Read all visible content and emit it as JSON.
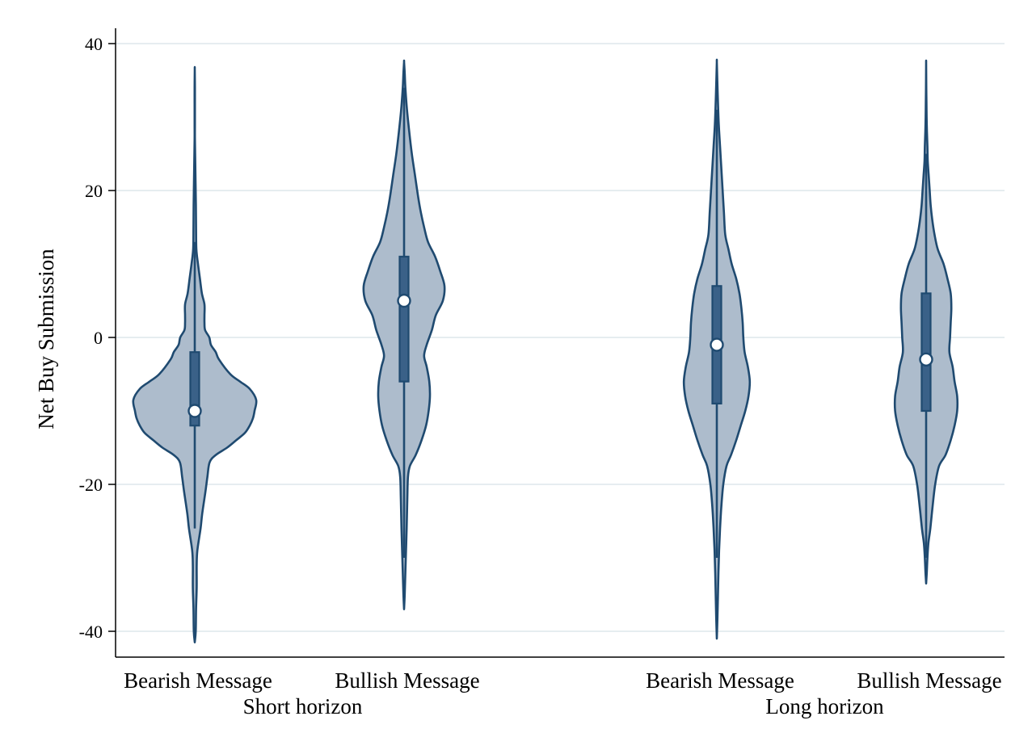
{
  "chart_data": {
    "type": "violin",
    "title": "",
    "ylabel": "Net Buy Submission",
    "ylim": [
      -44,
      42
    ],
    "yticks": [
      -40,
      -20,
      0,
      20,
      40
    ],
    "ytick_labels": [
      "-40",
      "-20",
      "0",
      "20",
      "40"
    ],
    "grid": true,
    "legend": "none",
    "colors": {
      "violin_fill": "#adbccc",
      "violin_stroke": "#1f4a70",
      "box_fill": "#3a6188",
      "grid": "#e6edf0",
      "median_marker": "#ffffff"
    },
    "groups": [
      {
        "label": "Short horizon",
        "violins": [
          {
            "label": "Bearish Message",
            "median": -10,
            "q1": -12,
            "q3": -2,
            "whisker_low": -26,
            "whisker_high": 13,
            "density": [
              [
                -41.5,
                0.0
              ],
              [
                -40,
                0.3
              ],
              [
                -37,
                0.4
              ],
              [
                -34,
                0.6
              ],
              [
                -31,
                0.6
              ],
              [
                -29,
                0.8
              ],
              [
                -26,
                1.8
              ],
              [
                -24,
                2.3
              ],
              [
                -21,
                3.3
              ],
              [
                -19,
                3.9
              ],
              [
                -17,
                4.6
              ],
              [
                -16,
                6.5
              ],
              [
                -15,
                10.0
              ],
              [
                -14,
                12.8
              ],
              [
                -13,
                15.5
              ],
              [
                -12,
                17.0
              ],
              [
                -11,
                18.0
              ],
              [
                -10,
                18.5
              ],
              [
                -8.5,
                19.0
              ],
              [
                -7,
                17.0
              ],
              [
                -6,
                14.0
              ],
              [
                -5,
                11.0
              ],
              [
                -3,
                7.5
              ],
              [
                -2,
                6.5
              ],
              [
                -1,
                5.0
              ],
              [
                0,
                4.5
              ],
              [
                1,
                3.2
              ],
              [
                2,
                3.0
              ],
              [
                3,
                3.0
              ],
              [
                4.5,
                3.0
              ],
              [
                6,
                2.2
              ],
              [
                8,
                1.6
              ],
              [
                10,
                1.0
              ],
              [
                12,
                0.5
              ],
              [
                15,
                0.4
              ],
              [
                18,
                0.35
              ],
              [
                21,
                0.25
              ],
              [
                24,
                0.15
              ],
              [
                27,
                0.05
              ],
              [
                29,
                0.05
              ],
              [
                31,
                0.05
              ],
              [
                34,
                0.05
              ],
              [
                36.5,
                0.0
              ]
            ]
          },
          {
            "label": "Bullish Message",
            "median": 5,
            "q1": -6,
            "q3": 11,
            "whisker_low": -30,
            "whisker_high": 34,
            "density": [
              [
                -37,
                0.0
              ],
              [
                -35,
                0.2
              ],
              [
                -32,
                0.4
              ],
              [
                -29,
                0.6
              ],
              [
                -26,
                0.8
              ],
              [
                -22,
                1.0
              ],
              [
                -19,
                1.2
              ],
              [
                -17.5,
                1.8
              ],
              [
                -16,
                3.6
              ],
              [
                -14,
                5.4
              ],
              [
                -12,
                6.8
              ],
              [
                -10,
                7.6
              ],
              [
                -8,
                8.0
              ],
              [
                -6,
                7.8
              ],
              [
                -4,
                7.0
              ],
              [
                -2.5,
                6.2
              ],
              [
                -1,
                7.0
              ],
              [
                1,
                8.6
              ],
              [
                3,
                9.8
              ],
              [
                5,
                12.0
              ],
              [
                7,
                12.5
              ],
              [
                9,
                11.2
              ],
              [
                11,
                9.6
              ],
              [
                13,
                7.4
              ],
              [
                15,
                6.2
              ],
              [
                17,
                5.2
              ],
              [
                19,
                4.4
              ],
              [
                22,
                3.4
              ],
              [
                25,
                2.4
              ],
              [
                28,
                1.6
              ],
              [
                31,
                0.9
              ],
              [
                34,
                0.4
              ],
              [
                36,
                0.2
              ],
              [
                37.5,
                0.0
              ]
            ]
          }
        ]
      },
      {
        "label": "Long horizon",
        "violins": [
          {
            "label": "Bearish Message",
            "median": -1,
            "q1": -9,
            "q3": 7,
            "whisker_low": -30,
            "whisker_high": 31,
            "density": [
              [
                -41,
                0.0
              ],
              [
                -38,
                0.2
              ],
              [
                -35,
                0.35
              ],
              [
                -32,
                0.5
              ],
              [
                -29,
                0.7
              ],
              [
                -26,
                1.0
              ],
              [
                -23,
                1.4
              ],
              [
                -20,
                2.0
              ],
              [
                -17.5,
                3.0
              ],
              [
                -16,
                4.4
              ],
              [
                -14,
                6.0
              ],
              [
                -12,
                7.4
              ],
              [
                -10,
                8.8
              ],
              [
                -8,
                9.8
              ],
              [
                -6,
                10.2
              ],
              [
                -4,
                9.6
              ],
              [
                -2,
                8.6
              ],
              [
                0,
                8.2
              ],
              [
                2,
                8.0
              ],
              [
                4,
                7.6
              ],
              [
                6,
                7.0
              ],
              [
                8,
                6.0
              ],
              [
                10,
                4.6
              ],
              [
                12,
                3.6
              ],
              [
                14,
                2.6
              ],
              [
                17,
                2.2
              ],
              [
                20,
                1.8
              ],
              [
                23,
                1.4
              ],
              [
                26,
                1.0
              ],
              [
                29,
                0.6
              ],
              [
                32,
                0.35
              ],
              [
                35,
                0.15
              ],
              [
                37.5,
                0.0
              ]
            ]
          },
          {
            "label": "Bullish Message",
            "median": -3,
            "q1": -10,
            "q3": 6,
            "whisker_low": -30,
            "whisker_high": 25,
            "density": [
              [
                -33.5,
                0.0
              ],
              [
                -32,
                0.2
              ],
              [
                -30,
                0.4
              ],
              [
                -28,
                0.7
              ],
              [
                -26,
                1.3
              ],
              [
                -23,
                2.0
              ],
              [
                -20,
                2.8
              ],
              [
                -17.5,
                4.0
              ],
              [
                -16,
                6.0
              ],
              [
                -14,
                7.6
              ],
              [
                -12,
                8.8
              ],
              [
                -10,
                9.6
              ],
              [
                -8,
                9.6
              ],
              [
                -6,
                8.8
              ],
              [
                -4,
                8.2
              ],
              [
                -2,
                7.2
              ],
              [
                0,
                7.4
              ],
              [
                2,
                7.6
              ],
              [
                4,
                7.8
              ],
              [
                6,
                7.6
              ],
              [
                8,
                6.6
              ],
              [
                10,
                5.4
              ],
              [
                12,
                3.6
              ],
              [
                14,
                2.6
              ],
              [
                16,
                1.9
              ],
              [
                18,
                1.4
              ],
              [
                20,
                1.1
              ],
              [
                22,
                0.8
              ],
              [
                24,
                0.5
              ],
              [
                26,
                0.4
              ],
              [
                28,
                0.25
              ],
              [
                30,
                0.15
              ],
              [
                32,
                0.1
              ],
              [
                34,
                0.05
              ],
              [
                36,
                0.02
              ],
              [
                37.5,
                0.0
              ]
            ]
          }
        ]
      }
    ]
  }
}
